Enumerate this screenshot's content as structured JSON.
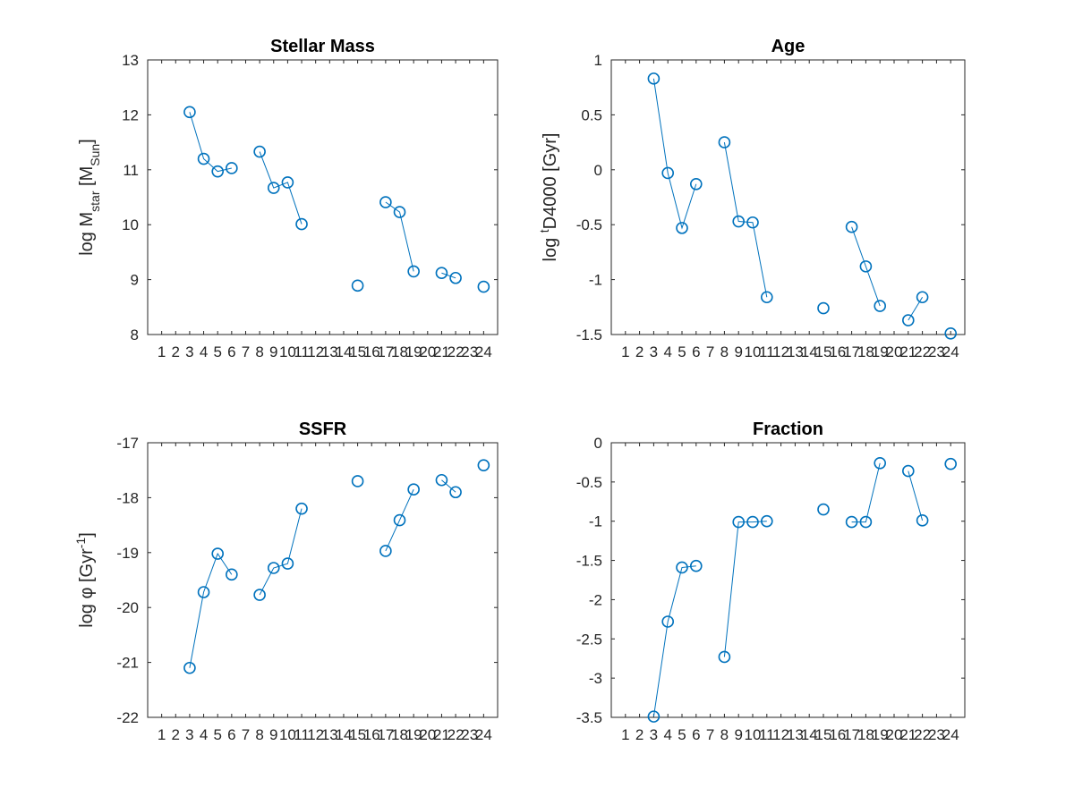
{
  "chart_data": [
    {
      "type": "line",
      "title": "Stellar Mass",
      "ylabel": {
        "pre": "log M",
        "sub": "star",
        "mid": " [M",
        "sub2": "Sun",
        "post": "]"
      },
      "ylim": [
        8,
        13
      ],
      "yticks": [
        8,
        9,
        10,
        11,
        12,
        13
      ],
      "xlim": [
        0,
        25
      ],
      "xticks": [
        1,
        2,
        3,
        4,
        5,
        6,
        7,
        8,
        9,
        10,
        11,
        12,
        13,
        14,
        15,
        16,
        17,
        18,
        19,
        20,
        21,
        22,
        23,
        24
      ],
      "color": "#0072BD",
      "segments": [
        [
          [
            3,
            12.05
          ],
          [
            4,
            11.2
          ],
          [
            5,
            10.97
          ],
          [
            6,
            11.03
          ]
        ],
        [
          [
            8,
            11.33
          ],
          [
            9,
            10.67
          ],
          [
            10,
            10.77
          ],
          [
            11,
            10.01
          ]
        ],
        [
          [
            15,
            8.89
          ]
        ],
        [
          [
            17,
            10.41
          ],
          [
            18,
            10.23
          ],
          [
            19,
            9.15
          ]
        ],
        [
          [
            21,
            9.12
          ],
          [
            22,
            9.03
          ]
        ],
        [
          [
            24,
            8.87
          ]
        ]
      ]
    },
    {
      "type": "line",
      "title": "Age",
      "ylabel": {
        "pre": "log ",
        "sup": "t",
        "post": "D4000 [Gyr]"
      },
      "ylim": [
        -1.5,
        1
      ],
      "yticks": [
        -1.5,
        -1,
        -0.5,
        0,
        0.5,
        1
      ],
      "xlim": [
        0,
        25
      ],
      "xticks": [
        1,
        2,
        3,
        4,
        5,
        6,
        7,
        8,
        9,
        10,
        11,
        12,
        13,
        14,
        15,
        16,
        17,
        18,
        19,
        20,
        21,
        22,
        23,
        24
      ],
      "color": "#0072BD",
      "segments": [
        [
          [
            3,
            0.83
          ],
          [
            4,
            -0.03
          ],
          [
            5,
            -0.53
          ],
          [
            6,
            -0.13
          ]
        ],
        [
          [
            8,
            0.25
          ],
          [
            9,
            -0.47
          ],
          [
            10,
            -0.48
          ],
          [
            11,
            -1.16
          ]
        ],
        [
          [
            15,
            -1.26
          ]
        ],
        [
          [
            17,
            -0.52
          ],
          [
            18,
            -0.88
          ],
          [
            19,
            -1.24
          ]
        ],
        [
          [
            21,
            -1.37
          ],
          [
            22,
            -1.16
          ]
        ],
        [
          [
            24,
            -1.49
          ]
        ]
      ]
    },
    {
      "type": "line",
      "title": "SSFR",
      "ylabel": {
        "pre": "log ",
        "greek": "φ",
        "mid": " [Gyr",
        "sup": "-1",
        "post": "]"
      },
      "ylim": [
        -22,
        -17
      ],
      "yticks": [
        -22,
        -21,
        -20,
        -19,
        -18,
        -17
      ],
      "xlim": [
        0,
        25
      ],
      "xticks": [
        1,
        2,
        3,
        4,
        5,
        6,
        7,
        8,
        9,
        10,
        11,
        12,
        13,
        14,
        15,
        16,
        17,
        18,
        19,
        20,
        21,
        22,
        23,
        24
      ],
      "color": "#0072BD",
      "segments": [
        [
          [
            3,
            -21.1
          ],
          [
            4,
            -19.72
          ],
          [
            5,
            -19.02
          ],
          [
            6,
            -19.4
          ]
        ],
        [
          [
            8,
            -19.77
          ],
          [
            9,
            -19.28
          ],
          [
            10,
            -19.2
          ],
          [
            11,
            -18.2
          ]
        ],
        [
          [
            15,
            -17.7
          ]
        ],
        [
          [
            17,
            -18.97
          ],
          [
            18,
            -18.41
          ],
          [
            19,
            -17.85
          ]
        ],
        [
          [
            21,
            -17.68
          ],
          [
            22,
            -17.9
          ]
        ],
        [
          [
            24,
            -17.41
          ]
        ]
      ]
    },
    {
      "type": "line",
      "title": "Fraction",
      "ylabel": "",
      "ylim": [
        -3.5,
        0
      ],
      "yticks": [
        -3.5,
        -3,
        -2.5,
        -2,
        -1.5,
        -1,
        -0.5,
        0
      ],
      "xlim": [
        0,
        25
      ],
      "xticks": [
        1,
        2,
        3,
        4,
        5,
        6,
        7,
        8,
        9,
        10,
        11,
        12,
        13,
        14,
        15,
        16,
        17,
        18,
        19,
        20,
        21,
        22,
        23,
        24
      ],
      "color": "#0072BD",
      "segments": [
        [
          [
            3,
            -3.49
          ],
          [
            4,
            -2.28
          ],
          [
            5,
            -1.59
          ],
          [
            6,
            -1.57
          ]
        ],
        [
          [
            8,
            -2.73
          ],
          [
            9,
            -1.01
          ],
          [
            10,
            -1.01
          ],
          [
            11,
            -1.0
          ]
        ],
        [
          [
            15,
            -0.85
          ]
        ],
        [
          [
            17,
            -1.01
          ],
          [
            18,
            -1.01
          ],
          [
            19,
            -0.26
          ]
        ],
        [
          [
            21,
            -0.36
          ],
          [
            22,
            -0.99
          ]
        ],
        [
          [
            24,
            -0.27
          ]
        ]
      ]
    }
  ]
}
